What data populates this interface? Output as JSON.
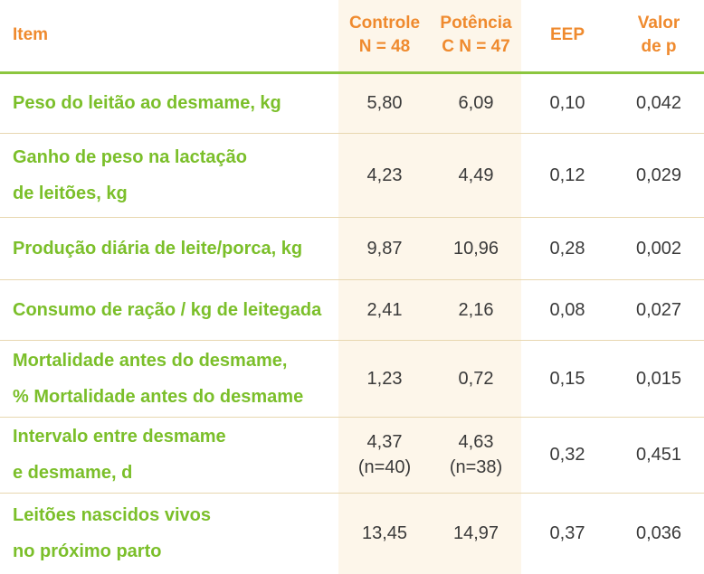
{
  "header": {
    "item": "Item",
    "controle_line1": "Controle",
    "controle_line2": "N = 48",
    "potencia_line1": "Potência",
    "potencia_line2": "C N = 47",
    "eep": "EEP",
    "valor_line1": "Valor",
    "valor_line2": "de p"
  },
  "rows": [
    {
      "item_line1": "Peso do leitão ao desmame, kg",
      "item_line2": "",
      "controle": "5,80",
      "controle_n": "",
      "potencia": "6,09",
      "potencia_n": "",
      "eep": "0,10",
      "p": "0,042"
    },
    {
      "item_line1": "Ganho de peso na lactação",
      "item_line2": "de leitões, kg",
      "controle": "4,23",
      "controle_n": "",
      "potencia": "4,49",
      "potencia_n": "",
      "eep": "0,12",
      "p": "0,029"
    },
    {
      "item_line1": "Produção diária de leite/porca, kg",
      "item_line2": "",
      "controle": "9,87",
      "controle_n": "",
      "potencia": "10,96",
      "potencia_n": "",
      "eep": "0,28",
      "p": "0,002"
    },
    {
      "item_line1": "Consumo de ração / kg de leitegada",
      "item_line2": "",
      "controle": "2,41",
      "controle_n": "",
      "potencia": "2,16",
      "potencia_n": "",
      "eep": "0,08",
      "p": "0,027"
    },
    {
      "item_line1": "Mortalidade antes do desmame,",
      "item_line2": "% Mortalidade antes do desmame",
      "controle": "1,23",
      "controle_n": "",
      "potencia": "0,72",
      "potencia_n": "",
      "eep": "0,15",
      "p": "0,015"
    },
    {
      "item_line1": "Intervalo entre desmame",
      "item_line2": "e desmame, d",
      "controle": "4,37",
      "controle_n": "(n=40)",
      "potencia": "4,63",
      "potencia_n": "(n=38)",
      "eep": "0,32",
      "p": "0,451"
    },
    {
      "item_line1": "Leitões nascidos vivos",
      "item_line2": "no próximo parto",
      "controle": "13,45",
      "controle_n": "",
      "potencia": "14,97",
      "potencia_n": "",
      "eep": "0,37",
      "p": "0,036"
    }
  ],
  "colors": {
    "header_text": "#ef8a2e",
    "item_text": "#7bbf2a",
    "header_rule": "#8cc63f",
    "row_rule": "#e8d7b0",
    "shaded_column": "#fdf6ea"
  }
}
